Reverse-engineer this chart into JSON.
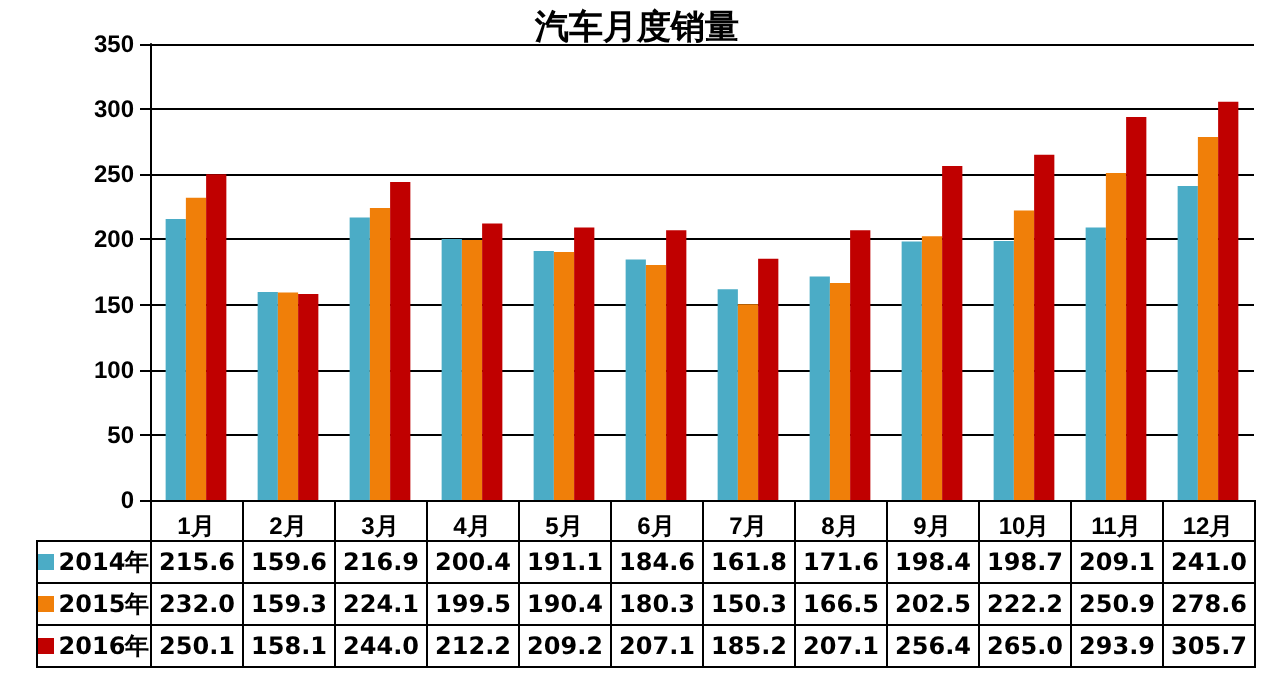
{
  "chart_data": {
    "type": "bar",
    "title": "汽车月度销量",
    "categories": [
      "1月",
      "2月",
      "3月",
      "4月",
      "5月",
      "6月",
      "7月",
      "8月",
      "9月",
      "10月",
      "11月",
      "12月"
    ],
    "series": [
      {
        "name": "2014年",
        "color": "#4bacc6",
        "values": [
          215.6,
          159.6,
          216.9,
          200.4,
          191.1,
          184.6,
          161.8,
          171.6,
          198.4,
          198.7,
          209.1,
          241.0
        ],
        "value_labels": [
          "215.6",
          "159.6",
          "216.9",
          "200.4",
          "191.1",
          "184.6",
          "161.8",
          "171.6",
          "198.4",
          "198.7",
          "209.1",
          "241.0"
        ]
      },
      {
        "name": "2015年",
        "color": "#f07f09",
        "values": [
          232.0,
          159.3,
          224.1,
          199.5,
          190.4,
          180.3,
          150.3,
          166.5,
          202.5,
          222.2,
          250.9,
          278.6
        ],
        "value_labels": [
          "232.0",
          "159.3",
          "224.1",
          "199.5",
          "190.4",
          "180.3",
          "150.3",
          "166.5",
          "202.5",
          "222.2",
          "250.9",
          "278.6"
        ]
      },
      {
        "name": "2016年",
        "color": "#c00000",
        "values": [
          250.1,
          158.1,
          244.0,
          212.2,
          209.2,
          207.1,
          185.2,
          207.1,
          256.4,
          265.0,
          293.9,
          305.7
        ],
        "value_labels": [
          "250.1",
          "158.1",
          "244.0",
          "212.2",
          "209.2",
          "207.1",
          "185.2",
          "207.1",
          "256.4",
          "265.0",
          "293.9",
          "305.7"
        ]
      }
    ],
    "ylim": [
      0,
      350
    ],
    "yticks": [
      0,
      50,
      100,
      150,
      200,
      250,
      300,
      350
    ],
    "grid": "y",
    "legend": "bottom"
  }
}
